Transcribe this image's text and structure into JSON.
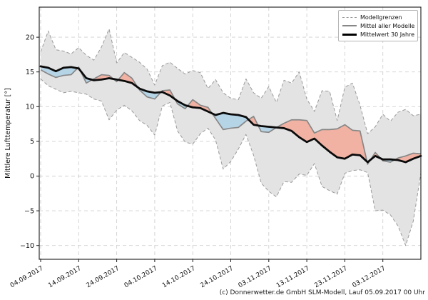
{
  "page": {
    "background": "#ffffff"
  },
  "footer": {
    "credit": "(c) Donnerwetter.de GmbH SLM-Modell, Lauf 05.09.2017 00 Uhr"
  },
  "legend": {
    "items": [
      {
        "id": "model-bounds",
        "label": "Modellgrenzen",
        "style": "dashed-gray"
      },
      {
        "id": "model-mean",
        "label": "Mittel aller Modelle",
        "style": "solid-gray"
      },
      {
        "id": "normal-30y",
        "label": "Mittelwert 30 Jahre",
        "style": "solid-black"
      }
    ]
  },
  "chart_data": {
    "type": "line",
    "title": "",
    "xlabel": "",
    "ylabel": "Mittlere Lufttemperatur [°]",
    "grid": true,
    "legend_position": "top-right",
    "ylim": [
      -12,
      24.3
    ],
    "yticks": [
      20,
      15,
      10,
      5,
      0,
      -5,
      -10
    ],
    "ytick_labels": [
      "20",
      "15",
      "10",
      "5",
      "0",
      "−5",
      "−10"
    ],
    "xtick_days": [
      0,
      10,
      20,
      30,
      40,
      50,
      60,
      70,
      80,
      90
    ],
    "xtick_labels": [
      "04.09.2017",
      "14.09.2017",
      "24.09.2017",
      "04.10.2017",
      "14.10.2017",
      "24.10.2017",
      "03.11.2017",
      "13.11.2017",
      "23.11.2017",
      "03.12.2017"
    ],
    "start_date": "04.09.2017",
    "step_days": 2,
    "x_days": [
      0,
      2,
      4,
      6,
      8,
      10,
      12,
      14,
      16,
      18,
      20,
      22,
      24,
      26,
      28,
      30,
      32,
      34,
      36,
      38,
      40,
      42,
      44,
      46,
      48,
      50,
      52,
      54,
      56,
      58,
      60,
      62,
      64,
      66,
      68,
      70,
      72,
      74,
      76,
      78,
      80,
      82,
      84,
      86,
      88,
      90,
      92,
      94,
      96,
      98,
      100
    ],
    "band_fill": "#e3e3e3",
    "warm_fill": "#f1b2a3",
    "cold_fill": "#b5d4e6",
    "series": [
      {
        "name": "Modellgrenzen (obere Grenze)",
        "role": "upper",
        "color": "#9b9b9b",
        "values": [
          17.9,
          20.9,
          18.2,
          18.0,
          17.6,
          18.5,
          17.4,
          16.7,
          18.6,
          21.2,
          16.3,
          17.8,
          17.1,
          16.4,
          15.4,
          13.1,
          15.9,
          16.4,
          15.5,
          14.7,
          15.2,
          14.9,
          12.6,
          13.9,
          12.0,
          11.2,
          11.0,
          14.0,
          12.0,
          11.2,
          12.9,
          10.6,
          13.8,
          13.4,
          15.0,
          11.1,
          9.3,
          12.3,
          12.2,
          8.0,
          12.8,
          13.4,
          10.2,
          6.1,
          7.1,
          8.9,
          7.9,
          9.2,
          9.6,
          8.7,
          8.9
        ]
      },
      {
        "name": "Modellgrenzen (untere Grenze)",
        "role": "lower",
        "color": "#9b9b9b",
        "values": [
          14.0,
          13.0,
          12.5,
          12.0,
          12.2,
          12.0,
          11.8,
          11.1,
          10.8,
          8.1,
          9.5,
          10.2,
          9.4,
          8.0,
          7.3,
          5.9,
          10.1,
          10.6,
          6.5,
          4.9,
          4.6,
          6.1,
          6.9,
          5.2,
          1.0,
          2.1,
          3.9,
          6.0,
          3.0,
          -1.0,
          -2.2,
          -3.0,
          -0.8,
          -0.9,
          0.3,
          0.1,
          1.8,
          -1.5,
          -2.1,
          -2.6,
          0.4,
          0.8,
          0.9,
          0.5,
          -5.0,
          -4.9,
          -5.6,
          -7.2,
          -10.0,
          -6.5,
          0.4
        ]
      },
      {
        "name": "Mittel aller Modelle",
        "role": "model_mean",
        "color": "#878787",
        "values": [
          15.3,
          14.7,
          14.2,
          14.5,
          14.6,
          15.7,
          13.4,
          14.0,
          14.6,
          14.5,
          13.6,
          14.9,
          14.1,
          12.4,
          11.4,
          11.1,
          12.3,
          12.4,
          10.4,
          9.7,
          11.0,
          10.2,
          9.9,
          8.3,
          6.7,
          6.9,
          7.0,
          7.9,
          8.6,
          6.4,
          6.3,
          7.0,
          7.6,
          8.1,
          8.1,
          8.0,
          6.2,
          6.7,
          6.7,
          6.8,
          7.4,
          6.6,
          6.5,
          1.7,
          3.4,
          2.2,
          2.0,
          2.6,
          2.9,
          3.3,
          3.2
        ]
      },
      {
        "name": "Mittelwert 30 Jahre",
        "role": "normal_30y",
        "color": "#0b0b0b",
        "values": [
          15.8,
          15.6,
          15.1,
          15.6,
          15.7,
          15.5,
          14.1,
          13.8,
          13.9,
          14.1,
          13.9,
          13.7,
          13.4,
          12.6,
          12.2,
          12.0,
          12.1,
          11.6,
          10.8,
          10.2,
          9.9,
          9.8,
          9.3,
          8.8,
          9.1,
          8.9,
          8.8,
          8.5,
          7.4,
          7.2,
          7.1,
          7.0,
          6.9,
          6.5,
          5.6,
          4.9,
          5.4,
          4.4,
          3.5,
          2.7,
          2.5,
          3.1,
          3.0,
          2.0,
          2.9,
          2.4,
          2.4,
          2.3,
          2.0,
          2.5,
          2.9
        ]
      }
    ]
  }
}
